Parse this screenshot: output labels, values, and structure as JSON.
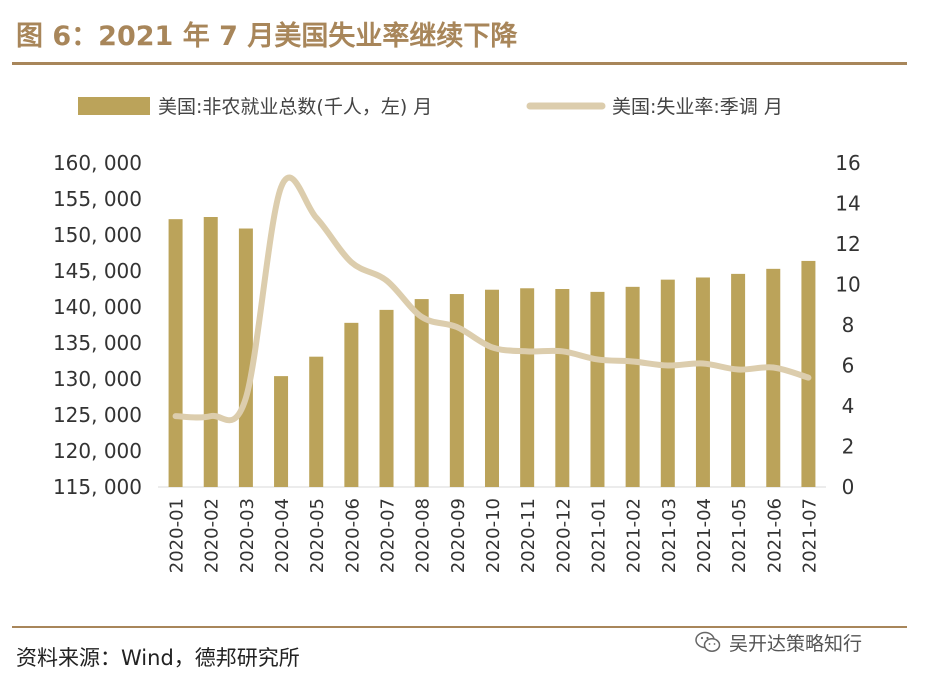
{
  "header": {
    "title": "图 6：2021 年 7 月美国失业率继续下降"
  },
  "footer": {
    "source": "资料来源：Wind，德邦研究所",
    "watermark": "吴开达策略知行"
  },
  "colors": {
    "accent": "#a8865a",
    "bar": "#bba35a",
    "line": "#dccdad"
  },
  "chart_data": {
    "type": "bar+line",
    "categories": [
      "2020-01",
      "2020-02",
      "2020-03",
      "2020-04",
      "2020-05",
      "2020-06",
      "2020-07",
      "2020-08",
      "2020-09",
      "2020-10",
      "2020-11",
      "2020-12",
      "2021-01",
      "2021-02",
      "2021-03",
      "2021-04",
      "2021-05",
      "2021-06",
      "2021-07"
    ],
    "series": [
      {
        "name": "美国:非农就业总数(千人，左) 月",
        "type": "bar",
        "axis": "left",
        "values": [
          152200,
          152500,
          150900,
          130400,
          133100,
          137800,
          139600,
          141100,
          141800,
          142400,
          142600,
          142500,
          142100,
          142800,
          143800,
          144100,
          144600,
          145300,
          146400
        ]
      },
      {
        "name": "美国:失业率:季调 月",
        "type": "line",
        "axis": "right",
        "values": [
          3.5,
          3.5,
          4.4,
          14.8,
          13.3,
          11.1,
          10.2,
          8.4,
          7.9,
          6.9,
          6.7,
          6.7,
          6.3,
          6.2,
          6.0,
          6.1,
          5.8,
          5.9,
          5.4
        ]
      }
    ],
    "y_left": {
      "ylim": [
        115000,
        160000
      ],
      "ticks": [
        "115, 000",
        "120, 000",
        "125, 000",
        "130, 000",
        "135, 000",
        "140, 000",
        "145, 000",
        "150, 000",
        "155, 000",
        "160, 000"
      ]
    },
    "y_right": {
      "ylim": [
        0,
        16
      ],
      "ticks": [
        "0",
        "2",
        "4",
        "6",
        "8",
        "10",
        "12",
        "14",
        "16"
      ]
    },
    "legend_position": "top"
  }
}
